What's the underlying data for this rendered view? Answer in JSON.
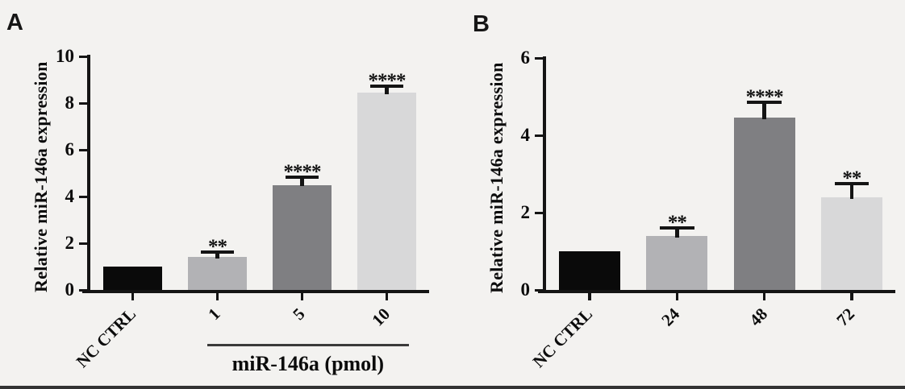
{
  "figure": {
    "background_color": "#f3f2f0",
    "panels": [
      {
        "label": "A"
      },
      {
        "label": "B"
      }
    ]
  },
  "chart_data": [
    {
      "type": "bar",
      "panel": "A",
      "title": "",
      "ylabel": "Relative miR-146a expression",
      "xlabel": "miR-146a (pmol)",
      "categories": [
        "NC CTRL",
        "1",
        "5",
        "10"
      ],
      "values": [
        1.0,
        1.4,
        4.5,
        8.45
      ],
      "errors": [
        0,
        0.3,
        0.4,
        0.35
      ],
      "significance": [
        "",
        "**",
        "****",
        "****"
      ],
      "group_underline": {
        "from_category": "1",
        "to_category": "10"
      },
      "bar_colors": [
        "#0a0a0a",
        "#b2b2b5",
        "#7f7f82",
        "#d8d8d9"
      ],
      "axis_color": "#141414",
      "ylim": [
        0,
        10
      ],
      "yticks": [
        0,
        2,
        4,
        6,
        8,
        10
      ],
      "grid": false,
      "legend_position": "none"
    },
    {
      "type": "bar",
      "panel": "B",
      "title": "",
      "ylabel": "Relative miR-146a expression",
      "xlabel": "",
      "categories": [
        "NC CTRL",
        "24",
        "48",
        "72"
      ],
      "values": [
        1.0,
        1.4,
        4.45,
        2.4
      ],
      "errors": [
        0,
        0.25,
        0.45,
        0.4
      ],
      "significance": [
        "",
        "**",
        "****",
        "**"
      ],
      "bar_colors": [
        "#0a0a0a",
        "#b2b2b5",
        "#7f7f82",
        "#d8d8d9"
      ],
      "axis_color": "#141414",
      "ylim": [
        0,
        6
      ],
      "yticks": [
        0,
        2,
        4,
        6
      ],
      "grid": false,
      "legend_position": "none"
    }
  ]
}
